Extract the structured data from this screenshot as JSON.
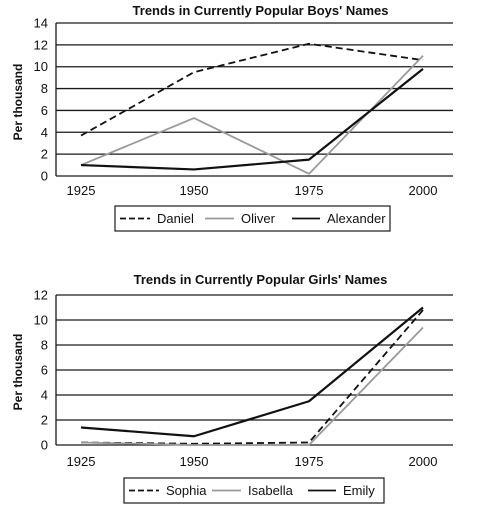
{
  "chart_data": [
    {
      "type": "line",
      "title": "Trends in Currently Popular Boys' Names",
      "xlabel": "",
      "ylabel": "Per thousand",
      "categories": [
        "1925",
        "1950",
        "1975",
        "2000"
      ],
      "ylim": [
        0,
        14
      ],
      "yticks": [
        0,
        2,
        4,
        6,
        8,
        10,
        12,
        14
      ],
      "grid": true,
      "legend_position": "bottom",
      "series": [
        {
          "name": "Daniel",
          "values": [
            3.7,
            9.5,
            12.1,
            10.6
          ],
          "color": "#111111",
          "style": "dashed"
        },
        {
          "name": "Oliver",
          "values": [
            1.0,
            5.3,
            0.2,
            11.0
          ],
          "color": "#9a9a9a",
          "style": "solid"
        },
        {
          "name": "Alexander",
          "values": [
            1.0,
            0.6,
            1.5,
            9.8
          ],
          "color": "#111111",
          "style": "solid"
        }
      ]
    },
    {
      "type": "line",
      "title": "Trends in Currently Popular Girls' Names",
      "xlabel": "",
      "ylabel": "Per thousand",
      "categories": [
        "1925",
        "1950",
        "1975",
        "2000"
      ],
      "ylim": [
        0,
        12
      ],
      "yticks": [
        0,
        2,
        4,
        6,
        8,
        10,
        12
      ],
      "grid": true,
      "legend_position": "bottom",
      "series": [
        {
          "name": "Sophia",
          "values": [
            0.2,
            0.1,
            0.2,
            10.8
          ],
          "color": "#111111",
          "style": "dashed"
        },
        {
          "name": "Isabella",
          "values": [
            0.2,
            0.0,
            0.0,
            9.4
          ],
          "color": "#9a9a9a",
          "style": "solid"
        },
        {
          "name": "Emily",
          "values": [
            1.4,
            0.7,
            3.5,
            11.0
          ],
          "color": "#111111",
          "style": "solid"
        }
      ]
    }
  ]
}
